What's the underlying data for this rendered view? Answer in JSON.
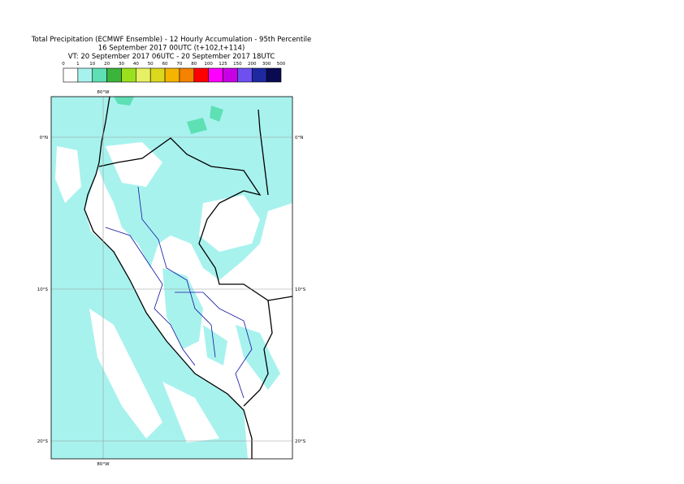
{
  "header": {
    "title_lines": [
      "Total Precipitation (ECMWF Ensemble) - 12 Hourly Accumulation - 95th Percentile",
      "16 September 2017 00UTC (t+102,t+114)",
      "VT: 20 September 2017 06UTC - 20 September 2017 18UTC"
    ]
  },
  "legend": {
    "thresholds": [
      "0",
      "1",
      "10",
      "20",
      "30",
      "40",
      "50",
      "60",
      "70",
      "80",
      "100",
      "125",
      "150",
      "200",
      "300",
      "500"
    ],
    "colors": [
      "#ffffff",
      "#a8f2ee",
      "#5ee0b4",
      "#3cb43c",
      "#9be01e",
      "#e6f064",
      "#dcd81e",
      "#f5b400",
      "#f58200",
      "#ff0000",
      "#ff00ff",
      "#c800e6",
      "#6e50f0",
      "#1e28a0",
      "#0a0a50"
    ]
  },
  "map": {
    "lon_labels": [
      "80°W"
    ],
    "lat_labels": [
      "0°N",
      "10°S",
      "20°S"
    ]
  }
}
